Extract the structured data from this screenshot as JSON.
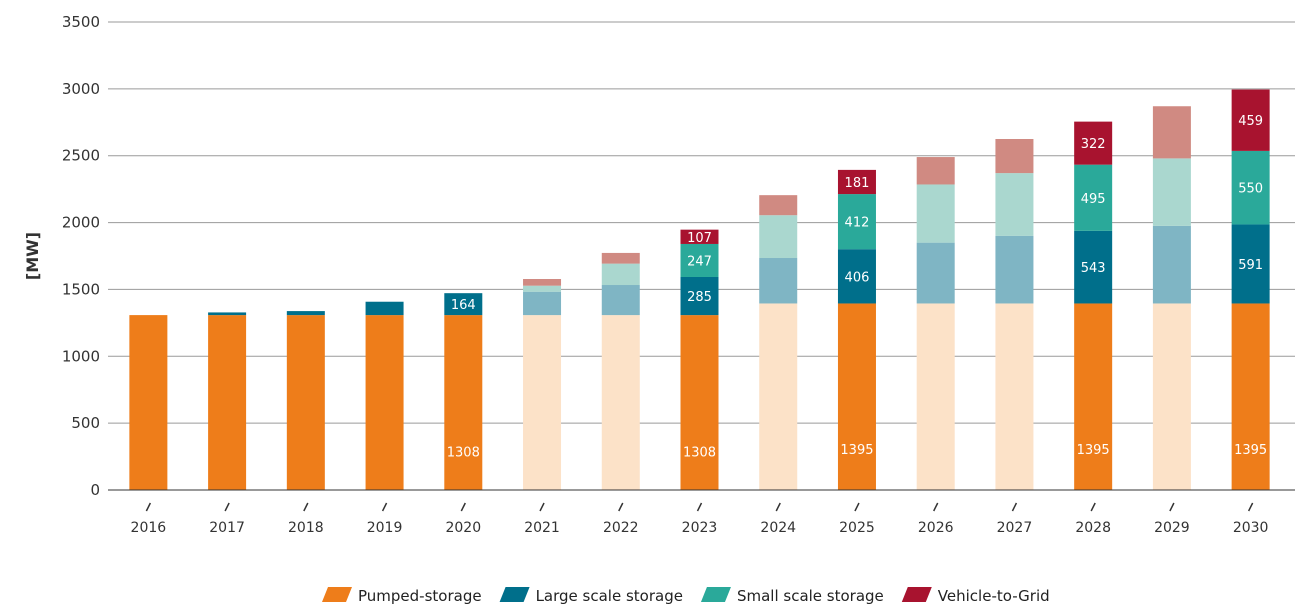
{
  "chart_data": {
    "type": "bar",
    "stacked": true,
    "ylabel": "[MW]",
    "ylim": [
      0,
      3500
    ],
    "yticks": [
      0,
      500,
      1000,
      1500,
      2000,
      2500,
      3000,
      3500
    ],
    "grid": true,
    "legend_position": "bottom",
    "categories": [
      "2016",
      "2017",
      "2018",
      "2019",
      "2020",
      "2021",
      "2022",
      "2023",
      "2024",
      "2025",
      "2026",
      "2027",
      "2028",
      "2029",
      "2030"
    ],
    "highlighted_years": [
      "2016",
      "2017",
      "2018",
      "2019",
      "2020",
      "2023",
      "2025",
      "2028",
      "2030"
    ],
    "series": [
      {
        "name": "Pumped-storage",
        "color": "#EE7D1A",
        "faded_color": "#FCE2C8",
        "values": [
          1308,
          1308,
          1308,
          1308,
          1308,
          1308,
          1308,
          1308,
          1395,
          1395,
          1395,
          1395,
          1395,
          1395,
          1395
        ]
      },
      {
        "name": "Large scale storage",
        "color": "#006F8B",
        "faded_color": "#7FB5C4",
        "values": [
          0,
          20,
          30,
          100,
          164,
          175,
          225,
          285,
          340,
          406,
          455,
          505,
          543,
          580,
          591
        ]
      },
      {
        "name": "Small scale storage",
        "color": "#2AA99A",
        "faded_color": "#AAD7CF",
        "values": [
          0,
          0,
          0,
          0,
          0,
          45,
          160,
          247,
          320,
          412,
          435,
          470,
          495,
          505,
          550
        ]
      },
      {
        "name": "Vehicle-to-Grid",
        "color": "#A8132F",
        "faded_color": "#D08A82",
        "values": [
          0,
          0,
          0,
          0,
          0,
          50,
          80,
          107,
          150,
          181,
          205,
          255,
          322,
          390,
          459
        ]
      }
    ],
    "data_labels": [
      {
        "category": "2020",
        "series": 0,
        "text": "1308"
      },
      {
        "category": "2020",
        "series": 1,
        "text": "164"
      },
      {
        "category": "2023",
        "series": 0,
        "text": "1308"
      },
      {
        "category": "2023",
        "series": 1,
        "text": "285"
      },
      {
        "category": "2023",
        "series": 2,
        "text": "247"
      },
      {
        "category": "2023",
        "series": 3,
        "text": "107"
      },
      {
        "category": "2025",
        "series": 0,
        "text": "1395"
      },
      {
        "category": "2025",
        "series": 1,
        "text": "406"
      },
      {
        "category": "2025",
        "series": 2,
        "text": "412"
      },
      {
        "category": "2025",
        "series": 3,
        "text": "181"
      },
      {
        "category": "2028",
        "series": 0,
        "text": "1395"
      },
      {
        "category": "2028",
        "series": 1,
        "text": "543"
      },
      {
        "category": "2028",
        "series": 2,
        "text": "495"
      },
      {
        "category": "2028",
        "series": 3,
        "text": "322"
      },
      {
        "category": "2030",
        "series": 0,
        "text": "1395"
      },
      {
        "category": "2030",
        "series": 1,
        "text": "591"
      },
      {
        "category": "2030",
        "series": 2,
        "text": "550"
      },
      {
        "category": "2030",
        "series": 3,
        "text": "459"
      }
    ],
    "axis_color": "#333333",
    "grid_color": "#9A9A9A"
  }
}
